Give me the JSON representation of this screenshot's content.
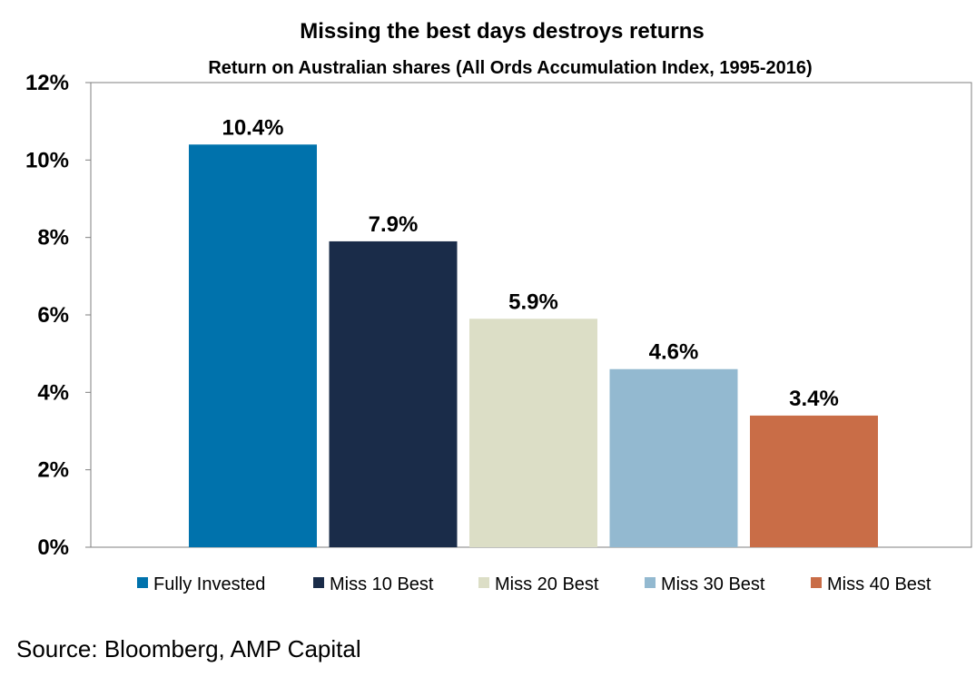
{
  "chart_data": {
    "type": "bar",
    "title": "Missing the best days destroys returns",
    "subtitle": "Return on Australian shares (All Ords Accumulation Index, 1995-2016)",
    "categories": [
      "Fully Invested",
      "Miss 10 Best",
      "Miss 20 Best",
      "Miss 30 Best",
      "Miss 40 Best"
    ],
    "values": [
      10.4,
      7.9,
      5.9,
      4.6,
      3.4
    ],
    "data_labels": [
      "10.4%",
      "7.9%",
      "5.9%",
      "4.6%",
      "3.4%"
    ],
    "colors": [
      "#0072AC",
      "#1A2C49",
      "#DCDEC6",
      "#93B9D0",
      "#C96D47"
    ],
    "ylim": [
      0,
      12
    ],
    "yticks": [
      0,
      2,
      4,
      6,
      8,
      10,
      12
    ],
    "ytick_labels": [
      "0%",
      "2%",
      "4%",
      "6%",
      "8%",
      "10%",
      "12%"
    ],
    "xlabel": "",
    "ylabel": "",
    "grid": false,
    "legend_position": "bottom"
  },
  "source": "Source: Bloomberg, AMP Capital"
}
